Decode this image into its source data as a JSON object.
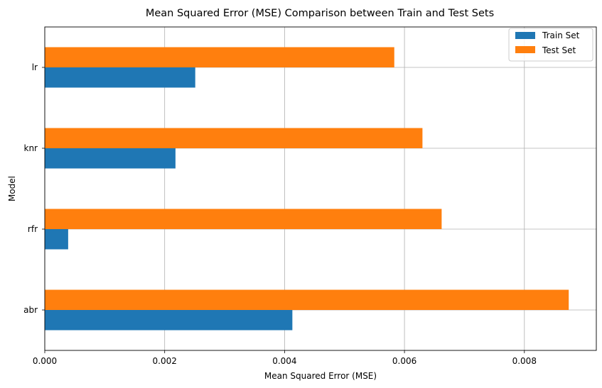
{
  "chart_data": {
    "type": "bar",
    "orientation": "horizontal",
    "title": "Mean Squared Error (MSE) Comparison between Train and Test Sets",
    "xlabel": "Mean Squared Error (MSE)",
    "ylabel": "Model",
    "categories": [
      "lr",
      "knr",
      "rfr",
      "abr"
    ],
    "series": [
      {
        "name": "Train Set",
        "color": "#1f77b4",
        "values": [
          0.00251,
          0.00218,
          0.00039,
          0.00413
        ]
      },
      {
        "name": "Test Set",
        "color": "#ff7f0e",
        "values": [
          0.00583,
          0.0063,
          0.00662,
          0.00874
        ]
      }
    ],
    "xlim": [
      0,
      0.0092
    ],
    "xticks": [
      0.0,
      0.002,
      0.004,
      0.006,
      0.008
    ],
    "xtick_labels": [
      "0.000",
      "0.002",
      "0.004",
      "0.006",
      "0.008"
    ],
    "grid": true,
    "legend_position": "top-right"
  }
}
